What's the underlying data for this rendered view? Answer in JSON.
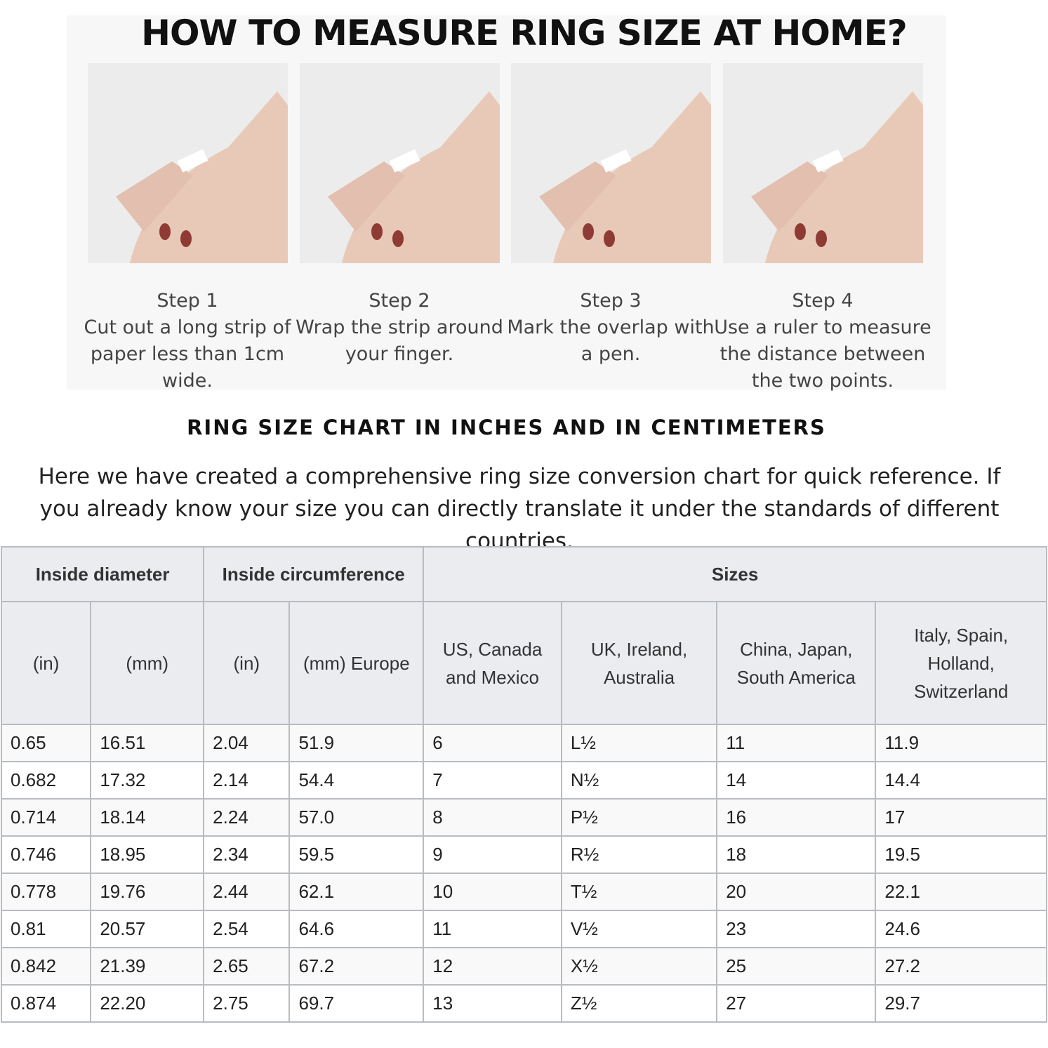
{
  "title": "HOW TO MEASURE RING SIZE AT HOME?",
  "steps": [
    {
      "label": "Step 1",
      "text": "Cut out a long strip of paper less than 1cm wide.",
      "image": "hand-cutting-paper-strip"
    },
    {
      "label": "Step 2",
      "text": "Wrap the strip around your finger.",
      "image": "hand-wrapping-strip"
    },
    {
      "label": "Step 3",
      "text": "Mark the overlap with a pen.",
      "image": "hand-marking-with-pen"
    },
    {
      "label": "Step 4",
      "text": "Use a ruler to measure the distance between the two points.",
      "image": "phone-ruler-measuring"
    }
  ],
  "chart_heading": "RING SIZE CHART IN INCHES AND IN CENTIMETERS",
  "intro": "Here we have created a comprehensive ring size conversion chart for quick reference. If you already know your size you can directly translate it under the standards of different countries.",
  "table": {
    "groups": [
      "Inside diameter",
      "Inside circumference",
      "Sizes"
    ],
    "columns": [
      "(in)",
      "(mm)",
      "(in)",
      "(mm) Europe",
      "US, Canada and Mexico",
      "UK, Ireland, Australia",
      "China, Japan, South America",
      "Italy, Spain, Holland, Switzerland"
    ],
    "rows": [
      [
        "0.65",
        "16.51",
        "2.04",
        "51.9",
        "6",
        "L½",
        "11",
        "11.9"
      ],
      [
        "0.682",
        "17.32",
        "2.14",
        "54.4",
        "7",
        "N½",
        "14",
        "14.4"
      ],
      [
        "0.714",
        "18.14",
        "2.24",
        "57.0",
        "8",
        "P½",
        "16",
        "17"
      ],
      [
        "0.746",
        "18.95",
        "2.34",
        "59.5",
        "9",
        "R½",
        "18",
        "19.5"
      ],
      [
        "0.778",
        "19.76",
        "2.44",
        "62.1",
        "10",
        "T½",
        "20",
        "22.1"
      ],
      [
        "0.81",
        "20.57",
        "2.54",
        "64.6",
        "11",
        "V½",
        "23",
        "24.6"
      ],
      [
        "0.842",
        "21.39",
        "2.65",
        "67.2",
        "12",
        "X½",
        "25",
        "27.2"
      ],
      [
        "0.874",
        "22.20",
        "2.75",
        "69.7",
        "13",
        "Z½",
        "27",
        "29.7"
      ]
    ]
  }
}
